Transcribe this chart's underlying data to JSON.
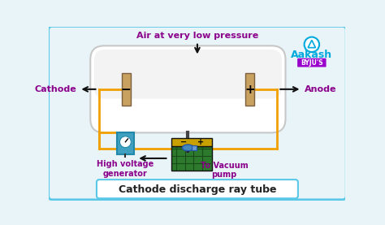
{
  "bg_color": "#e8f4f8",
  "outer_border_color": "#5bc8e8",
  "tube_fill": "#f0f0f0",
  "tube_stroke": "#c8c8c8",
  "electrode_fill": "#c8a060",
  "wire_color": "#f0a000",
  "arrow_color": "#111111",
  "label_cathode": "Cathode",
  "label_anode": "Anode",
  "label_air": "Air at very low pressure",
  "label_hvg": "High voltage\ngenerator",
  "label_vacuum": "To Vacuum\npump",
  "label_tube": "Cathode discharge ray tube",
  "label_minus": "−",
  "label_plus": "+",
  "purple_color": "#8b008b",
  "aakash_blue": "#00aadd",
  "green_battery": "#2d7a2d",
  "hvg_blue": "#40a0c0",
  "valve_blue": "#4488bb",
  "dark_pipe": "#444444",
  "battery_gold": "#c8a000",
  "battery_dark": "#1a5c1a"
}
